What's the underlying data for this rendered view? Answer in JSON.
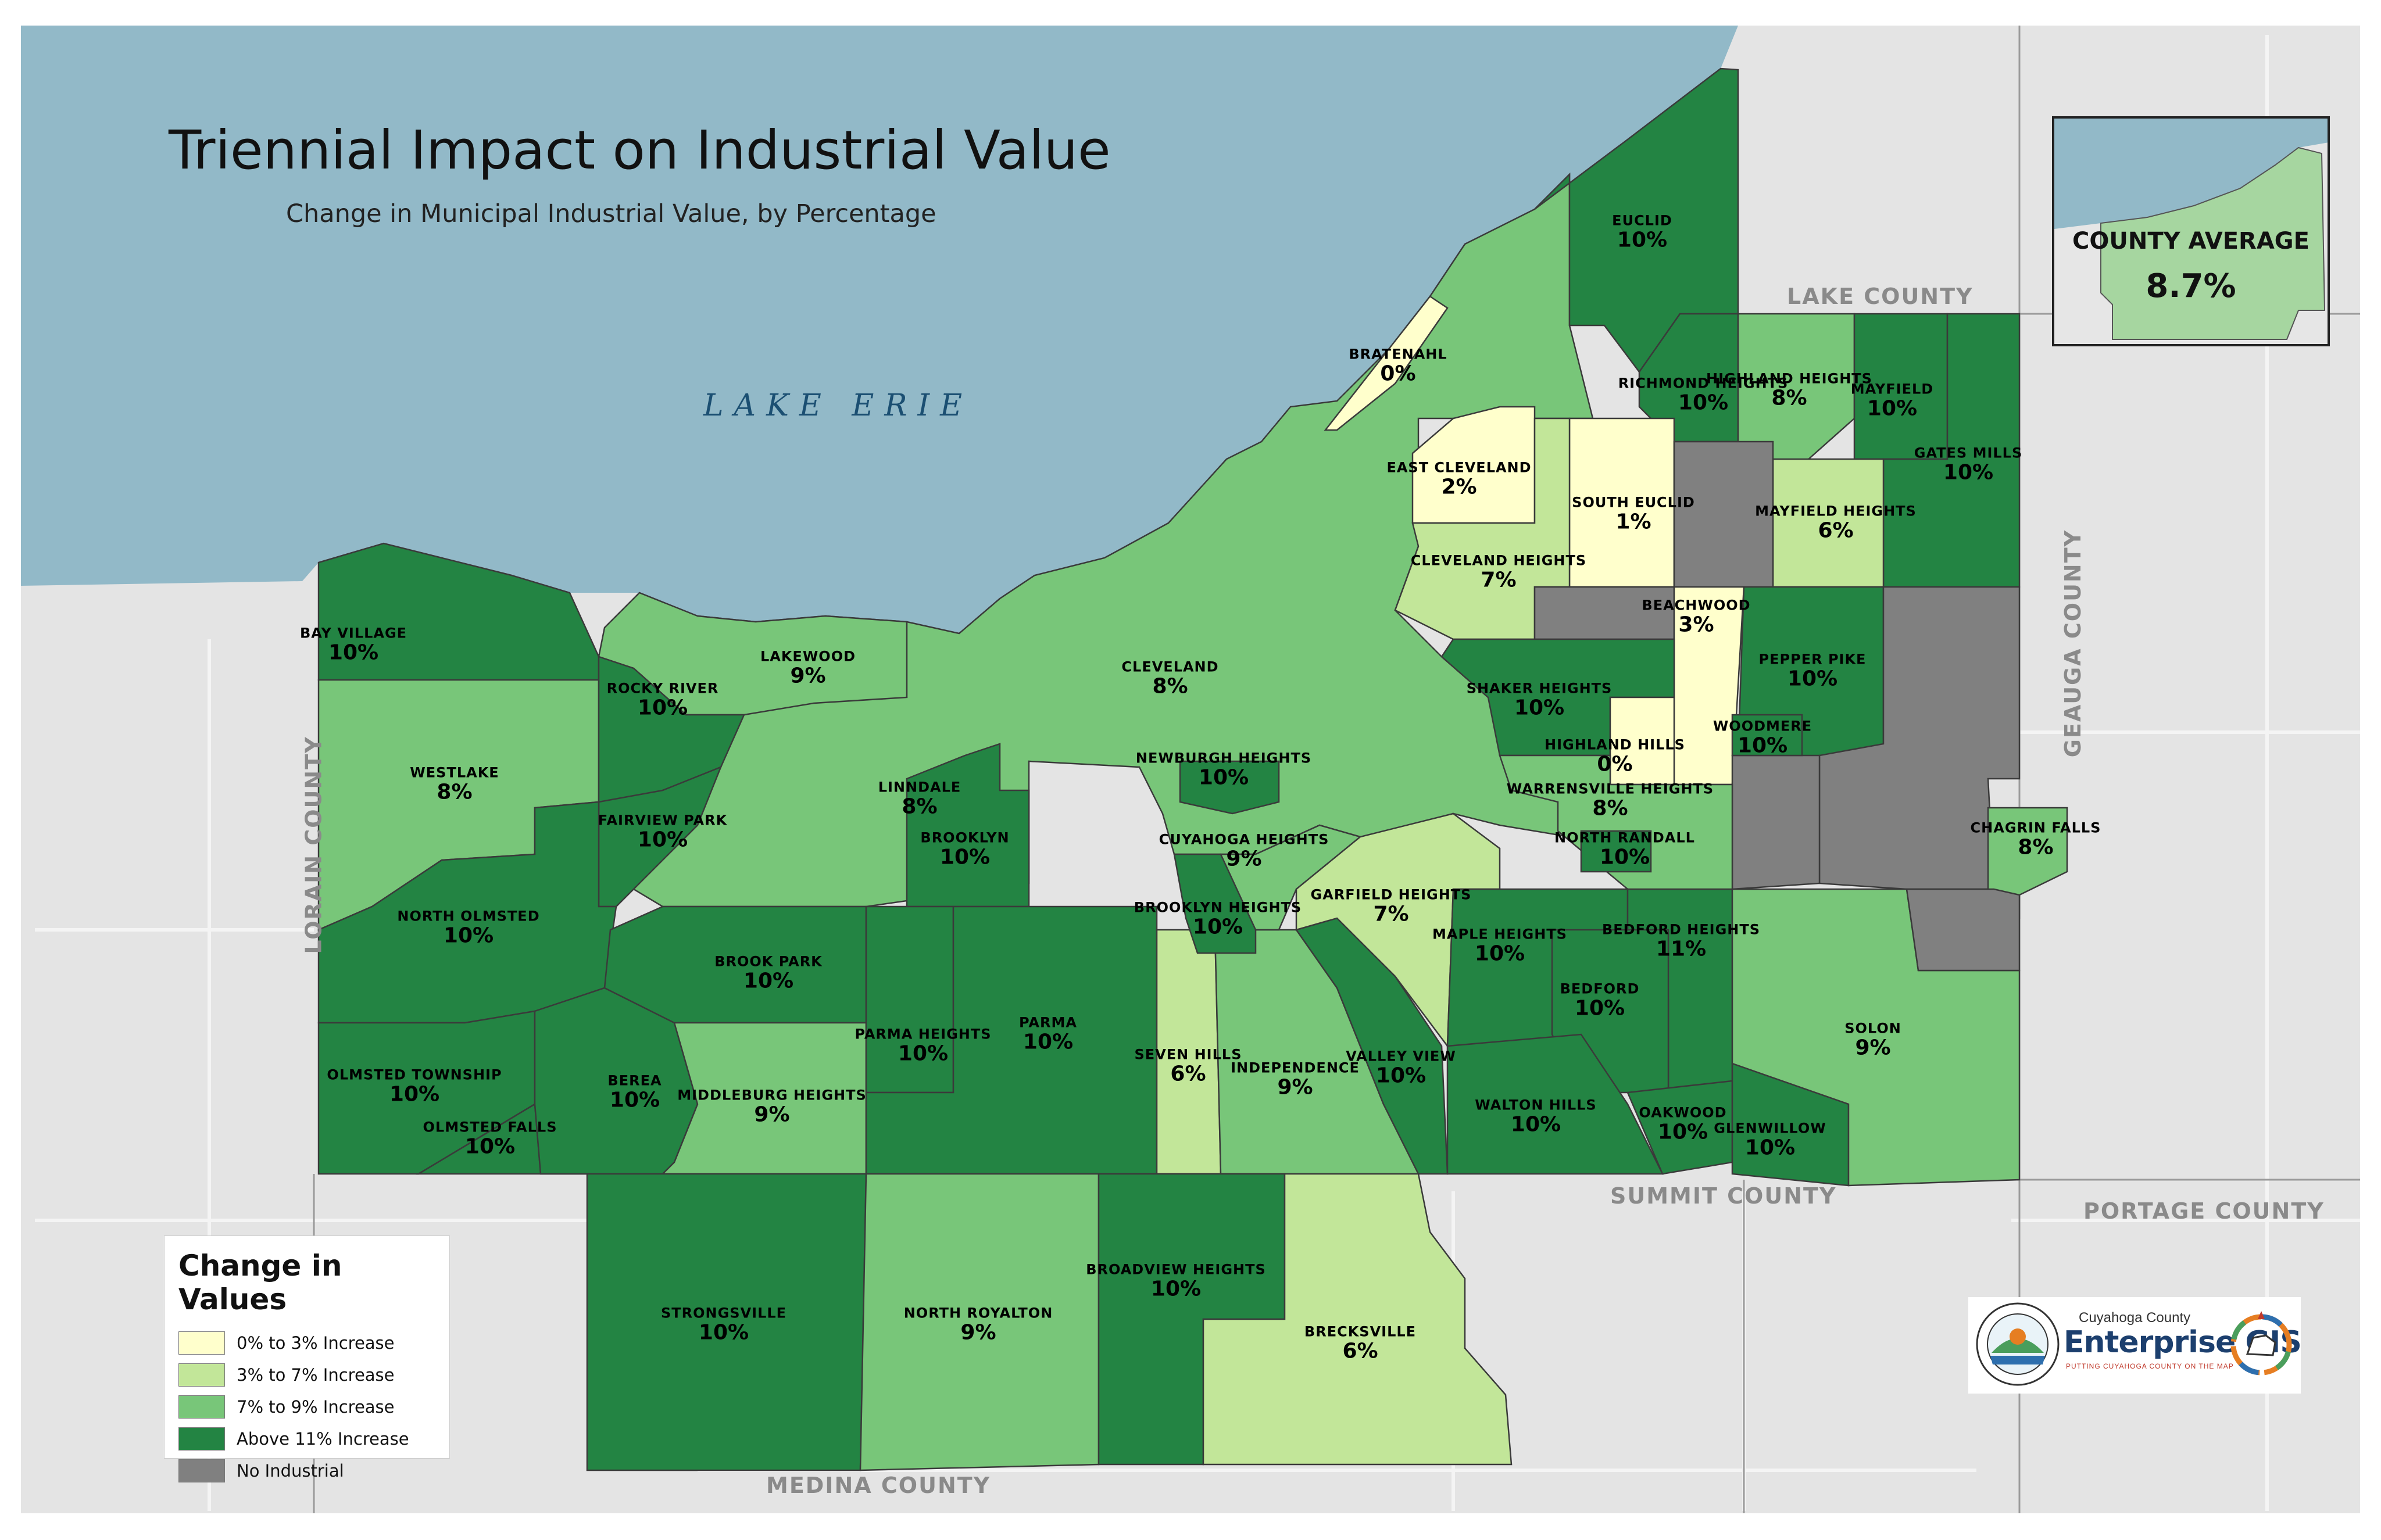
{
  "map": {
    "title": "Triennial Impact on Industrial Value",
    "subtitle": "Change in Municipal Industrial Value, by Percentage",
    "lake_label": "LAKE ERIE",
    "counties": {
      "lake": "LAKE COUNTY",
      "geauga": "GEAUGA COUNTY",
      "lorain": "LORAIN COUNTY",
      "summit": "SUMMIT COUNTY",
      "portage": "PORTAGE COUNTY",
      "medina": "MEDINA COUNTY"
    }
  },
  "legend": {
    "title": "Change in Values",
    "items": [
      {
        "label": "0% to 3% Increase",
        "color": "#ffffcc"
      },
      {
        "label": "3% to 7% Increase",
        "color": "#c2e699"
      },
      {
        "label": "7% to 9% Increase",
        "color": "#78c679"
      },
      {
        "label": "Above 11% Increase",
        "color": "#238443"
      },
      {
        "label": "No Industrial",
        "color": "#808080"
      }
    ]
  },
  "inset": {
    "title": "COUNTY AVERAGE",
    "value": "8.7%"
  },
  "logo": {
    "small_text": "Cuyahoga County",
    "big_text": "Enterprise GIS",
    "tagline": "PUTTING CUYAHOGA COUNTY ON THE MAP"
  },
  "municipalities": [
    {
      "id": "euclid",
      "name": "EUCLID",
      "value": "10%"
    },
    {
      "id": "bratenahl",
      "name": "BRATENAHL",
      "value": "0%"
    },
    {
      "id": "richmond-heights",
      "name": "RICHMOND HEIGHTS",
      "value": "10%"
    },
    {
      "id": "highland-heights",
      "name": "HIGHLAND HEIGHTS",
      "value": "8%"
    },
    {
      "id": "mayfield",
      "name": "MAYFIELD",
      "value": "10%"
    },
    {
      "id": "gates-mills",
      "name": "GATES MILLS",
      "value": "10%"
    },
    {
      "id": "east-cleveland",
      "name": "EAST CLEVELAND",
      "value": "2%"
    },
    {
      "id": "south-euclid",
      "name": "SOUTH EUCLID",
      "value": "1%"
    },
    {
      "id": "mayfield-heights",
      "name": "MAYFIELD HEIGHTS",
      "value": "6%"
    },
    {
      "id": "cleveland-heights",
      "name": "CLEVELAND HEIGHTS",
      "value": "7%"
    },
    {
      "id": "beachwood",
      "name": "BEACHWOOD",
      "value": "3%"
    },
    {
      "id": "pepper-pike",
      "name": "PEPPER PIKE",
      "value": "10%"
    },
    {
      "id": "bay-village",
      "name": "BAY VILLAGE",
      "value": "10%"
    },
    {
      "id": "lakewood",
      "name": "LAKEWOOD",
      "value": "9%"
    },
    {
      "id": "cleveland",
      "name": "CLEVELAND",
      "value": "8%"
    },
    {
      "id": "rocky-river",
      "name": "ROCKY RIVER",
      "value": "10%"
    },
    {
      "id": "shaker-heights",
      "name": "SHAKER HEIGHTS",
      "value": "10%"
    },
    {
      "id": "westlake",
      "name": "WESTLAKE",
      "value": "8%"
    },
    {
      "id": "highland-hills",
      "name": "HIGHLAND HILLS",
      "value": "0%"
    },
    {
      "id": "woodmere",
      "name": "WOODMERE",
      "value": "10%"
    },
    {
      "id": "newburgh-heights",
      "name": "NEWBURGH HEIGHTS",
      "value": "10%"
    },
    {
      "id": "linndale",
      "name": "LINNDALE",
      "value": "8%"
    },
    {
      "id": "warrensville-heights",
      "name": "WARRENSVILLE HEIGHTS",
      "value": "8%"
    },
    {
      "id": "fairview-park",
      "name": "FAIRVIEW PARK",
      "value": "10%"
    },
    {
      "id": "brooklyn",
      "name": "BROOKLYN",
      "value": "10%"
    },
    {
      "id": "north-randall",
      "name": "NORTH RANDALL",
      "value": "10%"
    },
    {
      "id": "chagrin-falls",
      "name": "CHAGRIN FALLS",
      "value": "8%"
    },
    {
      "id": "cuyahoga-heights",
      "name": "CUYAHOGA HEIGHTS",
      "value": "9%"
    },
    {
      "id": "north-olmsted",
      "name": "NORTH OLMSTED",
      "value": "10%"
    },
    {
      "id": "garfield-heights",
      "name": "GARFIELD HEIGHTS",
      "value": "7%"
    },
    {
      "id": "brooklyn-heights",
      "name": "BROOKLYN HEIGHTS",
      "value": "10%"
    },
    {
      "id": "maple-heights",
      "name": "MAPLE HEIGHTS",
      "value": "10%"
    },
    {
      "id": "bedford-heights",
      "name": "BEDFORD HEIGHTS",
      "value": "11%"
    },
    {
      "id": "brook-park",
      "name": "BROOK PARK",
      "value": "10%"
    },
    {
      "id": "bedford",
      "name": "BEDFORD",
      "value": "10%"
    },
    {
      "id": "parma-heights",
      "name": "PARMA HEIGHTS",
      "value": "10%"
    },
    {
      "id": "parma",
      "name": "PARMA",
      "value": "10%"
    },
    {
      "id": "solon",
      "name": "SOLON",
      "value": "9%"
    },
    {
      "id": "seven-hills",
      "name": "SEVEN HILLS",
      "value": "6%"
    },
    {
      "id": "independence",
      "name": "INDEPENDENCE",
      "value": "9%"
    },
    {
      "id": "valley-view",
      "name": "VALLEY VIEW",
      "value": "10%"
    },
    {
      "id": "olmsted-township",
      "name": "OLMSTED TOWNSHIP",
      "value": "10%"
    },
    {
      "id": "berea",
      "name": "BEREA",
      "value": "10%"
    },
    {
      "id": "middleburg-heights",
      "name": "MIDDLEBURG HEIGHTS",
      "value": "9%"
    },
    {
      "id": "walton-hills",
      "name": "WALTON HILLS",
      "value": "10%"
    },
    {
      "id": "oakwood",
      "name": "OAKWOOD",
      "value": "10%"
    },
    {
      "id": "glenwillow",
      "name": "GLENWILLOW",
      "value": "10%"
    },
    {
      "id": "olmsted-falls",
      "name": "OLMSTED FALLS",
      "value": "10%"
    },
    {
      "id": "broadview-heights",
      "name": "BROADVIEW HEIGHTS",
      "value": "10%"
    },
    {
      "id": "strongsville",
      "name": "STRONGSVILLE",
      "value": "10%"
    },
    {
      "id": "north-royalton",
      "name": "NORTH ROYALTON",
      "value": "9%"
    },
    {
      "id": "brecksville",
      "name": "BRECKSVILLE",
      "value": "6%"
    }
  ]
}
